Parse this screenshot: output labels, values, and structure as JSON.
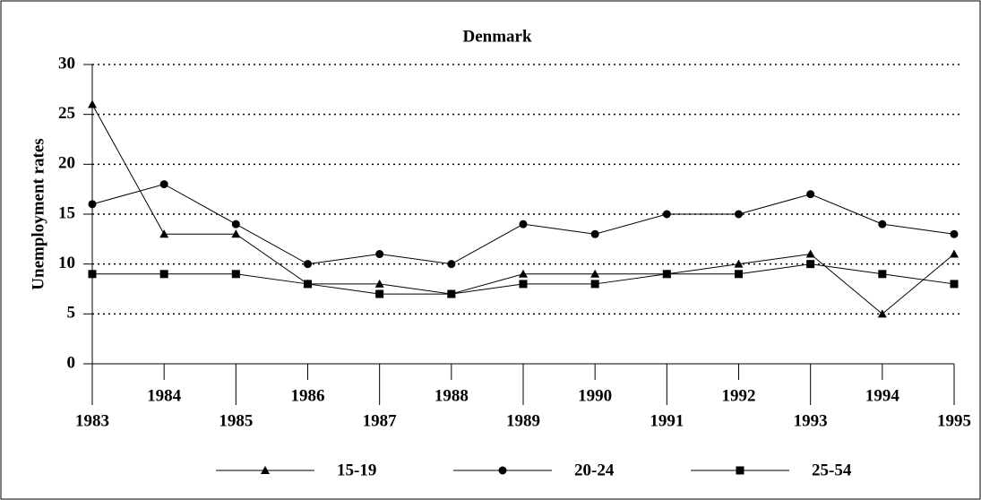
{
  "chart_data": {
    "type": "line",
    "title": "Denmark",
    "y_label": "Unemployment rates",
    "x": [
      1983,
      1984,
      1985,
      1986,
      1987,
      1988,
      1989,
      1990,
      1991,
      1992,
      1993,
      1994,
      1995
    ],
    "xlim": [
      1983,
      1995
    ],
    "ylim": [
      0,
      30
    ],
    "yticks": [
      0,
      5,
      10,
      15,
      20,
      25,
      30
    ],
    "grid": true,
    "series": [
      {
        "name": "15-19",
        "color": "#000000",
        "marker": "triangle",
        "values": [
          26,
          13,
          13,
          8,
          8,
          7,
          9,
          9,
          9,
          10,
          11,
          5,
          11
        ]
      },
      {
        "name": "20-24",
        "color": "#000000",
        "marker": "circle",
        "values": [
          16,
          18,
          14,
          10,
          11,
          10,
          14,
          13,
          15,
          15,
          17,
          14,
          13
        ]
      },
      {
        "name": "25-54",
        "color": "#000000",
        "marker": "square",
        "values": [
          9,
          9,
          9,
          8,
          7,
          7,
          8,
          8,
          9,
          9,
          10,
          9,
          8
        ]
      }
    ]
  }
}
